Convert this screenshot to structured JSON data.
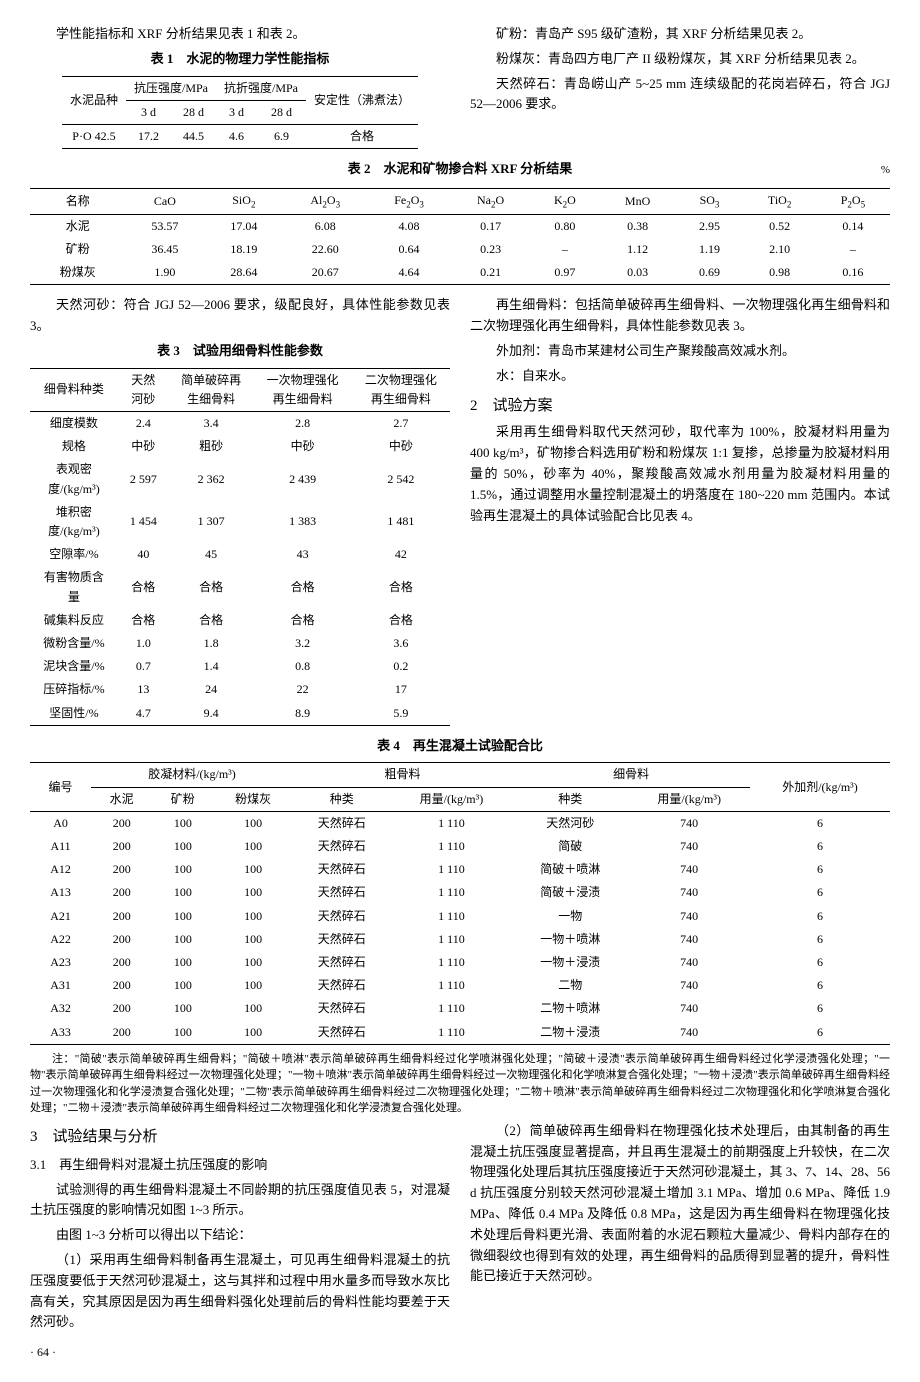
{
  "top": {
    "intro_left": "学性能指标和 XRF 分析结果见表 1 和表 2。",
    "intro_right_1": "矿粉：青岛产 S95 级矿渣粉，其 XRF 分析结果见表 2。",
    "intro_right_2": "粉煤灰：青岛四方电厂产 II 级粉煤灰，其 XRF 分析结果见表 2。",
    "intro_right_3": "天然碎石：青岛崂山产 5~25 mm 连续级配的花岗岩碎石，符合 JGJ 52—2006 要求。"
  },
  "table1": {
    "caption": "表 1　水泥的物理力学性能指标",
    "headers": {
      "c1": "水泥品种",
      "c2": "抗压强度/MPa",
      "c3": "抗折强度/MPa",
      "c4": "安定性（沸煮法）",
      "s1": "3 d",
      "s2": "28 d",
      "s3": "3 d",
      "s4": "28 d"
    },
    "row": {
      "name": "P·O 42.5",
      "v1": "17.2",
      "v2": "44.5",
      "v3": "4.6",
      "v4": "6.9",
      "v5": "合格"
    }
  },
  "table2": {
    "caption": "表 2　水泥和矿物掺合料 XRF 分析结果",
    "unit": "%",
    "headers": {
      "c1": "名称",
      "c2": "CaO",
      "c3": "SiO",
      "c4": "Al",
      "c5": "Fe",
      "c6": "Na",
      "c7": "K",
      "c8": "MnO",
      "c9": "SO",
      "c10": "TiO",
      "c11": "P"
    },
    "rows": [
      {
        "n": "水泥",
        "v": [
          "53.57",
          "17.04",
          "6.08",
          "4.08",
          "0.17",
          "0.80",
          "0.38",
          "2.95",
          "0.52",
          "0.14"
        ]
      },
      {
        "n": "矿粉",
        "v": [
          "36.45",
          "18.19",
          "22.60",
          "0.64",
          "0.23",
          "–",
          "1.12",
          "1.19",
          "2.10",
          "–"
        ]
      },
      {
        "n": "粉煤灰",
        "v": [
          "1.90",
          "28.64",
          "20.67",
          "4.64",
          "0.21",
          "0.97",
          "0.03",
          "0.69",
          "0.98",
          "0.16"
        ]
      }
    ]
  },
  "para_left_1": "天然河砂：符合 JGJ 52—2006 要求，级配良好，具体性能参数见表 3。",
  "table3": {
    "caption": "表 3　试验用细骨料性能参数",
    "headers": {
      "c1": "细骨料种类",
      "c2": "天然河砂",
      "c3": "简单破碎再生细骨料",
      "c4": "一次物理强化再生细骨料",
      "c5": "二次物理强化再生细骨料"
    },
    "rows": [
      {
        "n": "细度模数",
        "v": [
          "2.4",
          "3.4",
          "2.8",
          "2.7"
        ]
      },
      {
        "n": "规格",
        "v": [
          "中砂",
          "粗砂",
          "中砂",
          "中砂"
        ]
      },
      {
        "n": "表观密度/(kg/m³)",
        "v": [
          "2 597",
          "2 362",
          "2 439",
          "2 542"
        ]
      },
      {
        "n": "堆积密度/(kg/m³)",
        "v": [
          "1 454",
          "1 307",
          "1 383",
          "1 481"
        ]
      },
      {
        "n": "空隙率/%",
        "v": [
          "40",
          "45",
          "43",
          "42"
        ]
      },
      {
        "n": "有害物质含量",
        "v": [
          "合格",
          "合格",
          "合格",
          "合格"
        ]
      },
      {
        "n": "碱集料反应",
        "v": [
          "合格",
          "合格",
          "合格",
          "合格"
        ]
      },
      {
        "n": "微粉含量/%",
        "v": [
          "1.0",
          "1.8",
          "3.2",
          "3.6"
        ]
      },
      {
        "n": "泥块含量/%",
        "v": [
          "0.7",
          "1.4",
          "0.8",
          "0.2"
        ]
      },
      {
        "n": "压碎指标/%",
        "v": [
          "13",
          "24",
          "22",
          "17"
        ]
      },
      {
        "n": "坚固性/%",
        "v": [
          "4.7",
          "9.4",
          "8.9",
          "5.9"
        ]
      }
    ]
  },
  "para_right_1": "再生细骨料：包括简单破碎再生细骨料、一次物理强化再生细骨料和二次物理强化再生细骨料，具体性能参数见表 3。",
  "para_right_2": "外加剂：青岛市某建材公司生产聚羧酸高效减水剂。",
  "para_right_3": "水：自来水。",
  "section2": {
    "title": "2　试验方案",
    "p1": "采用再生细骨料取代天然河砂，取代率为 100%，胶凝材料用量为 400 kg/m³，矿物掺合料选用矿粉和粉煤灰 1:1 复掺，总掺量为胶凝材料用量的 50%，砂率为 40%，聚羧酸高效减水剂用量为胶凝材料用量的 1.5%，通过调整用水量控制混凝土的坍落度在 180~220 mm 范围内。本试验再生混凝土的具体试验配合比见表 4。"
  },
  "table4": {
    "caption": "表 4　再生混凝土试验配合比",
    "headers": {
      "c1": "编号",
      "c2": "胶凝材料/(kg/m³)",
      "c3": "粗骨料",
      "c4": "细骨料",
      "c5": "外加剂/(kg/m³)",
      "s1": "水泥",
      "s2": "矿粉",
      "s3": "粉煤灰",
      "s4": "种类",
      "s5": "用量/(kg/m³)",
      "s6": "种类",
      "s7": "用量/(kg/m³)"
    },
    "rows": [
      {
        "id": "A0",
        "v": [
          "200",
          "100",
          "100",
          "天然碎石",
          "1 110",
          "天然河砂",
          "740",
          "6"
        ]
      },
      {
        "id": "A11",
        "v": [
          "200",
          "100",
          "100",
          "天然碎石",
          "1 110",
          "简破",
          "740",
          "6"
        ]
      },
      {
        "id": "A12",
        "v": [
          "200",
          "100",
          "100",
          "天然碎石",
          "1 110",
          "简破＋喷淋",
          "740",
          "6"
        ]
      },
      {
        "id": "A13",
        "v": [
          "200",
          "100",
          "100",
          "天然碎石",
          "1 110",
          "简破＋浸渍",
          "740",
          "6"
        ]
      },
      {
        "id": "A21",
        "v": [
          "200",
          "100",
          "100",
          "天然碎石",
          "1 110",
          "一物",
          "740",
          "6"
        ]
      },
      {
        "id": "A22",
        "v": [
          "200",
          "100",
          "100",
          "天然碎石",
          "1 110",
          "一物＋喷淋",
          "740",
          "6"
        ]
      },
      {
        "id": "A23",
        "v": [
          "200",
          "100",
          "100",
          "天然碎石",
          "1 110",
          "一物＋浸渍",
          "740",
          "6"
        ]
      },
      {
        "id": "A31",
        "v": [
          "200",
          "100",
          "100",
          "天然碎石",
          "1 110",
          "二物",
          "740",
          "6"
        ]
      },
      {
        "id": "A32",
        "v": [
          "200",
          "100",
          "100",
          "天然碎石",
          "1 110",
          "二物＋喷淋",
          "740",
          "6"
        ]
      },
      {
        "id": "A33",
        "v": [
          "200",
          "100",
          "100",
          "天然碎石",
          "1 110",
          "二物＋浸渍",
          "740",
          "6"
        ]
      }
    ],
    "note": "注：\"简破\"表示简单破碎再生细骨料；\"简破＋喷淋\"表示简单破碎再生细骨料经过化学喷淋强化处理；\"简破＋浸渍\"表示简单破碎再生细骨料经过化学浸渍强化处理；\"一物\"表示简单破碎再生细骨料经过一次物理强化处理；\"一物＋喷淋\"表示简单破碎再生细骨料经过一次物理强化和化学喷淋复合强化处理；\"一物＋浸渍\"表示简单破碎再生细骨料经过一次物理强化和化学浸渍复合强化处理；\"二物\"表示简单破碎再生细骨料经过二次物理强化处理；\"二物＋喷淋\"表示简单破碎再生细骨料经过二次物理强化和化学喷淋复合强化处理；\"二物＋浸渍\"表示简单破碎再生细骨料经过二次物理强化和化学浸渍复合强化处理。"
  },
  "section3": {
    "title": "3　试验结果与分析",
    "sub31": "3.1　再生细骨料对混凝土抗压强度的影响",
    "left_p1": "试验测得的再生细骨料混凝土不同龄期的抗压强度值见表 5，对混凝土抗压强度的影响情况如图 1~3 所示。",
    "left_p2": "由图 1~3 分析可以得出以下结论：",
    "left_p3": "（1）采用再生细骨料制备再生混凝土，可见再生细骨料混凝土的抗压强度要低于天然河砂混凝土，这与其拌和过程中用水量多而导致水灰比高有关，究其原因是因为再生细骨料强化处理前后的骨料性能均要差于天然河砂。",
    "right_p1": "（2）简单破碎再生细骨料在物理强化技术处理后，由其制备的再生混凝土抗压强度显著提高，并且再生混凝土的前期强度上升较快，在二次物理强化处理后其抗压强度接近于天然河砂混凝土，其 3、7、14、28、56 d 抗压强度分别较天然河砂混凝土增加 3.1 MPa、增加 0.6 MPa、降低 1.9 MPa、降低 0.4 MPa 及降低 0.8 MPa，这是因为再生细骨料在物理强化技术处理后骨料更光滑、表面附着的水泥石颗粒大量减少、骨料内部存在的微细裂纹也得到有效的处理，再生细骨料的品质得到显著的提升，骨料性能已接近于天然河砂。"
  },
  "page_num": "· 64 ·"
}
